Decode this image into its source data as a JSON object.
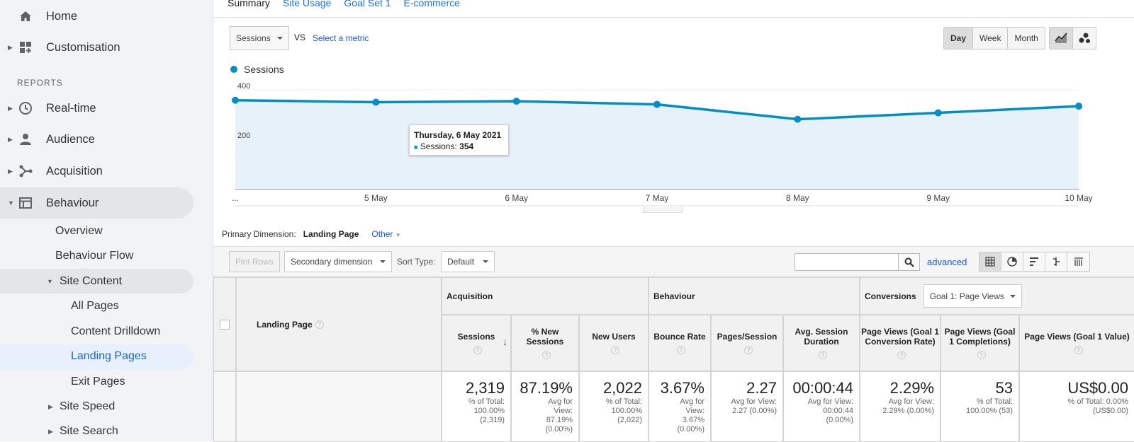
{
  "sidebar": {
    "home": "Home",
    "customisation": "Customisation",
    "reports_header": "REPORTS",
    "realtime": "Real-time",
    "audience": "Audience",
    "acquisition": "Acquisition",
    "behaviour": "Behaviour",
    "overview": "Overview",
    "behaviour_flow": "Behaviour Flow",
    "site_content": "Site Content",
    "all_pages": "All Pages",
    "content_drilldown": "Content Drilldown",
    "landing_pages": "Landing Pages",
    "exit_pages": "Exit Pages",
    "site_speed": "Site Speed",
    "site_search": "Site Search"
  },
  "tabs": [
    "Summary",
    "Site Usage",
    "Goal Set 1",
    "E-commerce"
  ],
  "metric": {
    "selected": "Sessions",
    "vs": "VS",
    "select": "Select a metric"
  },
  "granularity": [
    "Day",
    "Week",
    "Month"
  ],
  "legend": "Sessions",
  "tooltip": {
    "date": "Thursday, 6 May 2021",
    "label": "Sessions:",
    "value": "354"
  },
  "chart_data": {
    "type": "area",
    "x": [
      "...",
      "5 May",
      "6 May",
      "7 May",
      "8 May",
      "9 May",
      "10 May"
    ],
    "series": [
      {
        "name": "Sessions",
        "values": [
          358,
          350,
          354,
          341,
          281,
          307,
          334
        ]
      }
    ],
    "ylim": [
      0,
      400
    ],
    "yticks": [
      "400",
      "200"
    ],
    "color": "#058dc7"
  },
  "dimension": {
    "label": "Primary Dimension:",
    "value": "Landing Page",
    "other": "Other"
  },
  "toolbar": {
    "plot_rows": "Plot Rows",
    "secondary": "Secondary dimension",
    "sort_label": "Sort Type:",
    "sort_value": "Default",
    "advanced": "advanced"
  },
  "table": {
    "landing_page": "Landing Page",
    "groups": {
      "acquisition": "Acquisition",
      "behaviour": "Behaviour",
      "conversions": "Conversions",
      "goal_select": "Goal 1: Page Views"
    },
    "columns": [
      "Sessions",
      "% New Sessions",
      "New Users",
      "Bounce Rate",
      "Pages/Session",
      "Avg. Session Duration",
      "Page Views (Goal 1 Conversion Rate)",
      "Page Views (Goal 1 Completions)",
      "Page Views (Goal 1 Value)"
    ],
    "totals": [
      {
        "value": "2,319",
        "sub": "% of Total: 100.00% (2,319)"
      },
      {
        "value": "87.19%",
        "sub": "Avg for View: 87.19% (0.00%)"
      },
      {
        "value": "2,022",
        "sub": "% of Total: 100.00% (2,022)"
      },
      {
        "value": "3.67%",
        "sub": "Avg for View: 3.67% (0.00%)"
      },
      {
        "value": "2.27",
        "sub": "Avg for View: 2.27 (0.00%)"
      },
      {
        "value": "00:00:44",
        "sub": "Avg for View: 00:00:44 (0.00%)"
      },
      {
        "value": "2.29%",
        "sub": "Avg for View: 2.29% (0.00%)"
      },
      {
        "value": "53",
        "sub": "% of Total: 100.00% (53)"
      },
      {
        "value": "US$0.00",
        "sub": "% of Total: 0.00% (US$0.00)"
      }
    ]
  }
}
